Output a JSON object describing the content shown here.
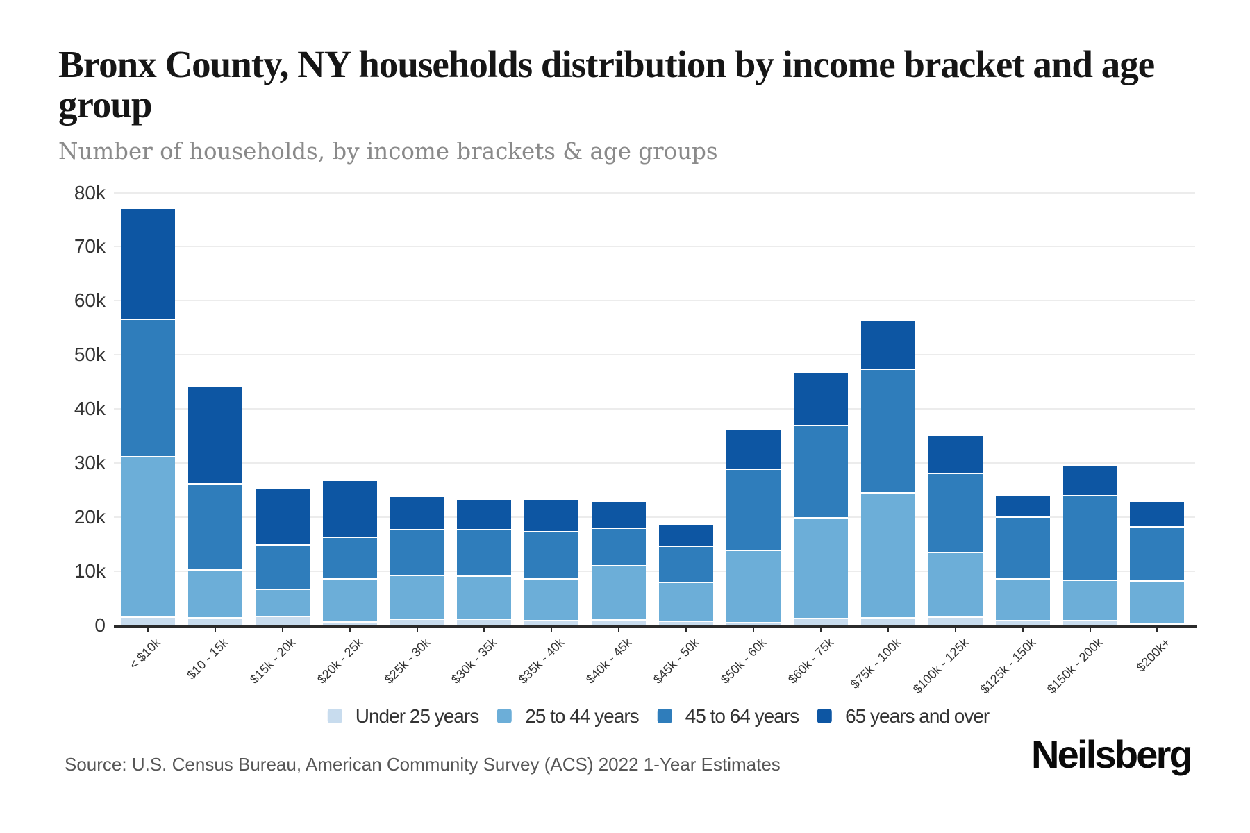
{
  "header": {
    "title": "Bronx County, NY households distribution by income bracket and age group",
    "subtitle": "Number of households, by income brackets & age groups"
  },
  "chart_data": {
    "type": "bar",
    "stacked": true,
    "title": "Bronx County, NY households distribution by income bracket and age group",
    "subtitle": "Number of households, by income brackets & age groups",
    "categories": [
      "< $10k",
      "$10 - 15k",
      "$15k - 20k",
      "$20k - 25k",
      "$25k - 30k",
      "$30k - 35k",
      "$35k - 40k",
      "$40k - 45k",
      "$45k - 50k",
      "$50k - 60k",
      "$60k - 75k",
      "$75k - 100k",
      "$100k - 125k",
      "$125k - 150k",
      "$150k - 200k",
      "$200k+"
    ],
    "series": [
      {
        "name": "Under 25 years",
        "color": "#c8dcee",
        "values": [
          1500,
          1400,
          1600,
          600,
          1100,
          1100,
          800,
          1000,
          700,
          500,
          1200,
          1400,
          1500,
          800,
          800,
          200
        ]
      },
      {
        "name": "25 to 44 years",
        "color": "#6caed8",
        "values": [
          29600,
          8800,
          5000,
          7900,
          8100,
          8000,
          7700,
          10000,
          7200,
          13300,
          18600,
          23000,
          11900,
          7700,
          7500,
          8000
        ]
      },
      {
        "name": "45 to 64 years",
        "color": "#2f7dbb",
        "values": [
          25500,
          15900,
          8200,
          7800,
          8500,
          8600,
          8800,
          6900,
          6700,
          15000,
          17100,
          22900,
          14600,
          11500,
          15700,
          10000
        ]
      },
      {
        "name": "65 years and over",
        "color": "#0d56a3",
        "values": [
          20400,
          18000,
          10300,
          10400,
          6000,
          5500,
          5700,
          4900,
          3900,
          7200,
          9600,
          9000,
          7000,
          3900,
          5500,
          4600
        ]
      }
    ],
    "ylim": [
      0,
      80000
    ],
    "ytick_step": 10000,
    "ytick_labels": [
      "0",
      "10k",
      "20k",
      "30k",
      "40k",
      "50k",
      "60k",
      "70k",
      "80k"
    ],
    "grid": true,
    "legend_position": "bottom"
  },
  "footer": {
    "source": "Source: U.S. Census Bureau, American Community Survey (ACS) 2022 1-Year Estimates",
    "brand": "Neilsberg"
  }
}
